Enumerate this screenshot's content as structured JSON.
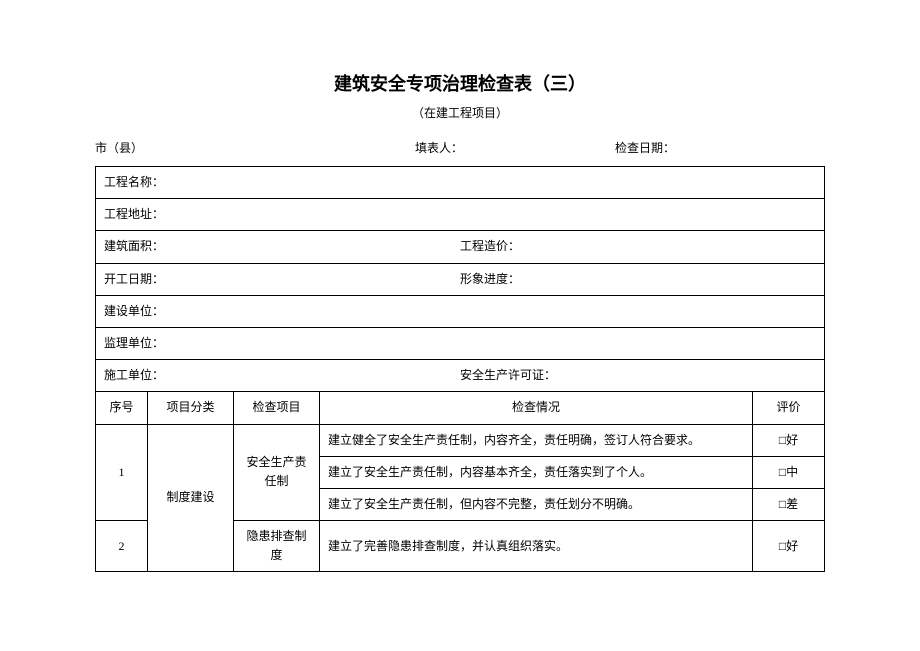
{
  "title": "建筑安全专项治理检查表（三）",
  "subtitle": "（在建工程项目）",
  "header": {
    "city_label": "市（县）",
    "filler_label": "填表人：",
    "date_label": "检查日期："
  },
  "info": {
    "project_name_label": "工程名称：",
    "project_addr_label": "工程地址：",
    "area_label": "建筑面积：",
    "cost_label": "工程造价：",
    "start_date_label": "开工日期：",
    "progress_label": "形象进度：",
    "build_unit_label": "建设单位：",
    "supervise_unit_label": "监理单位：",
    "construct_unit_label": "施工单位：",
    "permit_label": "安全生产许可证："
  },
  "columns": {
    "seq": "序号",
    "category": "项目分类",
    "item": "检查项目",
    "situation": "检查情况",
    "eval": "评价"
  },
  "rows": {
    "r1": {
      "seq": "1",
      "category": "制度建设",
      "item": "安全生产责任制",
      "desc1": "建立健全了安全生产责任制，内容齐全，责任明确，签订人符合要求。",
      "eval1": "□好",
      "desc2": "建立了安全生产责任制，内容基本齐全，责任落实到了个人。",
      "eval2": "□中",
      "desc3": "建立了安全生产责任制，但内容不完整，责任划分不明确。",
      "eval3": "□差"
    },
    "r2": {
      "seq": "2",
      "item": "隐患排查制度",
      "desc1": "建立了完善隐患排查制度，并认真组织落实。",
      "eval1": "□好"
    }
  }
}
